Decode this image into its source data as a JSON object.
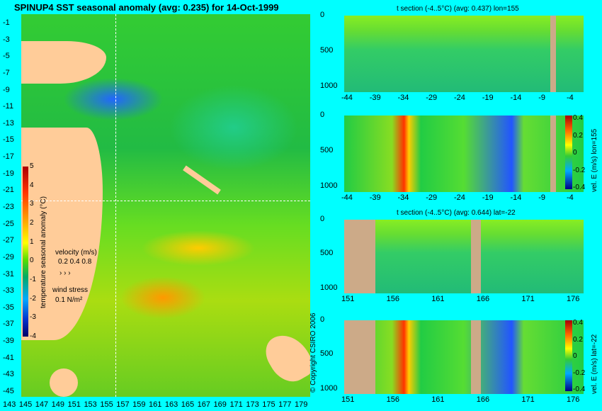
{
  "main_map": {
    "title": "SPINUP4 SST seasonal anomaly (avg: 0.235) for 14-Oct-1999",
    "lat_ticks": [
      "-1",
      "-3",
      "-5",
      "-7",
      "-9",
      "-11",
      "-13",
      "-15",
      "-17",
      "-19",
      "-21",
      "-23",
      "-25",
      "-27",
      "-29",
      "-31",
      "-33",
      "-35",
      "-37",
      "-39",
      "-41",
      "-43",
      "-45"
    ],
    "lon_ticks": [
      "143",
      "145",
      "147",
      "149",
      "151",
      "153",
      "155",
      "157",
      "159",
      "161",
      "163",
      "165",
      "167",
      "169",
      "171",
      "173",
      "175",
      "177",
      "179"
    ],
    "colorbar": {
      "label": "temperature seasonal anomaly (°C)",
      "ticks": [
        "5",
        "4",
        "3",
        "2",
        "1",
        "0",
        "-1",
        "-2",
        "-3",
        "-4"
      ],
      "range": [
        -4,
        5
      ]
    },
    "velocity_legend": {
      "label": "velocity (m/s)",
      "values": "0.2 0.4 0.8"
    },
    "wind_legend": {
      "label": "wind stress",
      "value": "0.1 N/m²"
    },
    "copyright": "© Copyright CSIRO 2006",
    "crosshair": {
      "lon": 155,
      "lat": -22
    }
  },
  "panels": [
    {
      "title": "t section (-4..5°C) (avg: 0.437) lon=155",
      "x_ticks": [
        "-44",
        "-39",
        "-34",
        "-29",
        "-24",
        "-19",
        "-14",
        "-9",
        "-4"
      ],
      "y_ticks": [
        "0",
        "500",
        "1000"
      ],
      "colorbar": null
    },
    {
      "title": "",
      "x_ticks": [
        "-44",
        "-39",
        "-34",
        "-29",
        "-24",
        "-19",
        "-14",
        "-9",
        "-4"
      ],
      "y_ticks": [
        "0",
        "500",
        "1000"
      ],
      "colorbar": {
        "label": "vel. E (m/s) lon=155",
        "ticks": [
          "0.4",
          "0.2",
          "0",
          "-0.2",
          "-0.4"
        ],
        "range": [
          -0.4,
          0.4
        ]
      }
    },
    {
      "title": "t section (-4..5°C) (avg: 0.644) lat=-22",
      "x_ticks": [
        "151",
        "156",
        "161",
        "166",
        "171",
        "176"
      ],
      "y_ticks": [
        "0",
        "500",
        "1000"
      ],
      "colorbar": null
    },
    {
      "title": "",
      "x_ticks": [
        "151",
        "156",
        "161",
        "166",
        "171",
        "176"
      ],
      "y_ticks": [
        "0",
        "500",
        "1000"
      ],
      "colorbar": {
        "label": "vel. E (m/s) lat=-22",
        "ticks": [
          "0.4",
          "0.2",
          "0",
          "-0.2",
          "-0.4"
        ],
        "range": [
          -0.4,
          0.4
        ]
      }
    }
  ]
}
